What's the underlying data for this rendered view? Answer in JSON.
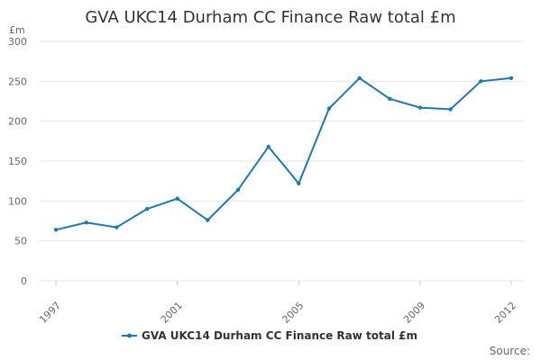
{
  "chart_data": {
    "type": "line",
    "title": "GVA UKC14 Durham CC Finance Raw total £m",
    "y_unit": "£m",
    "ylim": [
      0,
      300
    ],
    "y_ticks": [
      0,
      50,
      100,
      150,
      200,
      250,
      300
    ],
    "xlim": [
      1997,
      2012
    ],
    "x_tick_labels": [
      "1997",
      "2001",
      "2005",
      "2009",
      "2012"
    ],
    "x": [
      1997,
      1998,
      1999,
      2000,
      2001,
      2002,
      2003,
      2004,
      2005,
      2006,
      2007,
      2008,
      2009,
      2010,
      2011,
      2012
    ],
    "series": [
      {
        "name": "GVA UKC14 Durham CC Finance Raw total £m",
        "color": "#1a7ab8",
        "values": [
          64,
          73,
          67,
          90,
          103,
          76,
          114,
          168,
          122,
          216,
          254,
          228,
          217,
          215,
          250,
          254
        ]
      }
    ],
    "grid": true,
    "legend": "bottom-center",
    "source_label": "Source:"
  }
}
